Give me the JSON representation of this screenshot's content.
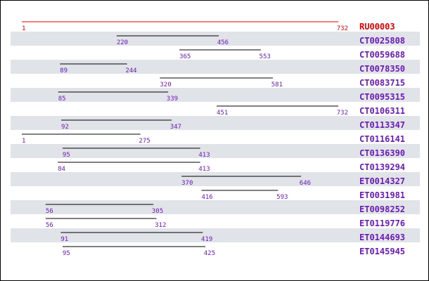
{
  "colors": {
    "reference": "#e00000",
    "hit": "#6a1bb8",
    "stripe": "#e0e3e8",
    "line": "#000000",
    "background": "#ffffff"
  },
  "reference_length": 732,
  "rows": [
    {
      "id": "RU00003",
      "start": 1,
      "end": 732,
      "is_reference": true
    },
    {
      "id": "CT0025808",
      "start": 220,
      "end": 456
    },
    {
      "id": "CT0059688",
      "start": 365,
      "end": 553
    },
    {
      "id": "CT0078350",
      "start": 89,
      "end": 244
    },
    {
      "id": "CT0083715",
      "start": 320,
      "end": 581
    },
    {
      "id": "CT0095315",
      "start": 85,
      "end": 339
    },
    {
      "id": "CT0106311",
      "start": 451,
      "end": 732
    },
    {
      "id": "CT0113347",
      "start": 92,
      "end": 347
    },
    {
      "id": "CT0116141",
      "start": 1,
      "end": 275
    },
    {
      "id": "CT0136390",
      "start": 95,
      "end": 413
    },
    {
      "id": "CT0139294",
      "start": 84,
      "end": 413
    },
    {
      "id": "ET0014327",
      "start": 370,
      "end": 646
    },
    {
      "id": "ET0031981",
      "start": 416,
      "end": 593
    },
    {
      "id": "ET0098252",
      "start": 56,
      "end": 305
    },
    {
      "id": "ET0119776",
      "start": 56,
      "end": 312
    },
    {
      "id": "ET0144693",
      "start": 91,
      "end": 419
    },
    {
      "id": "ET0145945",
      "start": 95,
      "end": 425
    }
  ]
}
